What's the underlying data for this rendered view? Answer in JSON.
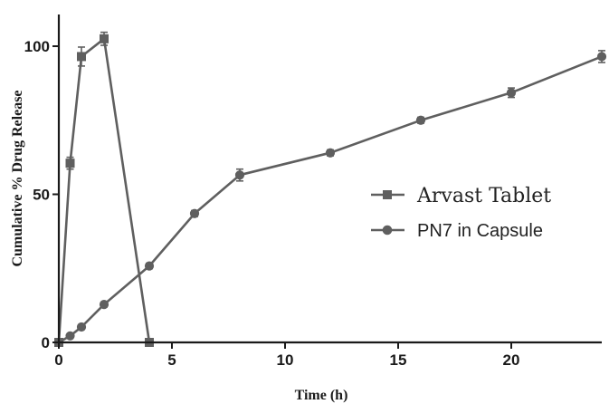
{
  "chart_data": {
    "type": "line",
    "title": "",
    "xlabel": "Time (h)",
    "ylabel": "Cumulative % Drug Release",
    "xlim": [
      0,
      24
    ],
    "ylim": [
      0,
      110
    ],
    "xticks": [
      0,
      5,
      10,
      15,
      20
    ],
    "yticks": [
      0,
      50,
      100
    ],
    "grid": false,
    "legend_position": "center-right",
    "series_color": "#5f5f5f",
    "axis_color": "#1a1a1a",
    "series": [
      {
        "name": "Arvast Tablet",
        "marker": "square",
        "x": [
          0,
          0.5,
          1,
          2,
          4
        ],
        "y": [
          0,
          60.5,
          96.5,
          102.5,
          0
        ],
        "error": [
          0,
          2,
          3.2,
          2.2,
          0
        ]
      },
      {
        "name": "PN7 in Capsule",
        "marker": "circle",
        "x": [
          0,
          0.5,
          1,
          2,
          4,
          6,
          8,
          12,
          16,
          20,
          24
        ],
        "y": [
          0,
          2.2,
          5.2,
          12.8,
          25.8,
          43.5,
          56.5,
          64,
          75,
          84.3,
          96.5
        ],
        "error": [
          0,
          0.5,
          0.7,
          0.8,
          0.9,
          1,
          2,
          1,
          1,
          1.6,
          2
        ]
      }
    ]
  }
}
